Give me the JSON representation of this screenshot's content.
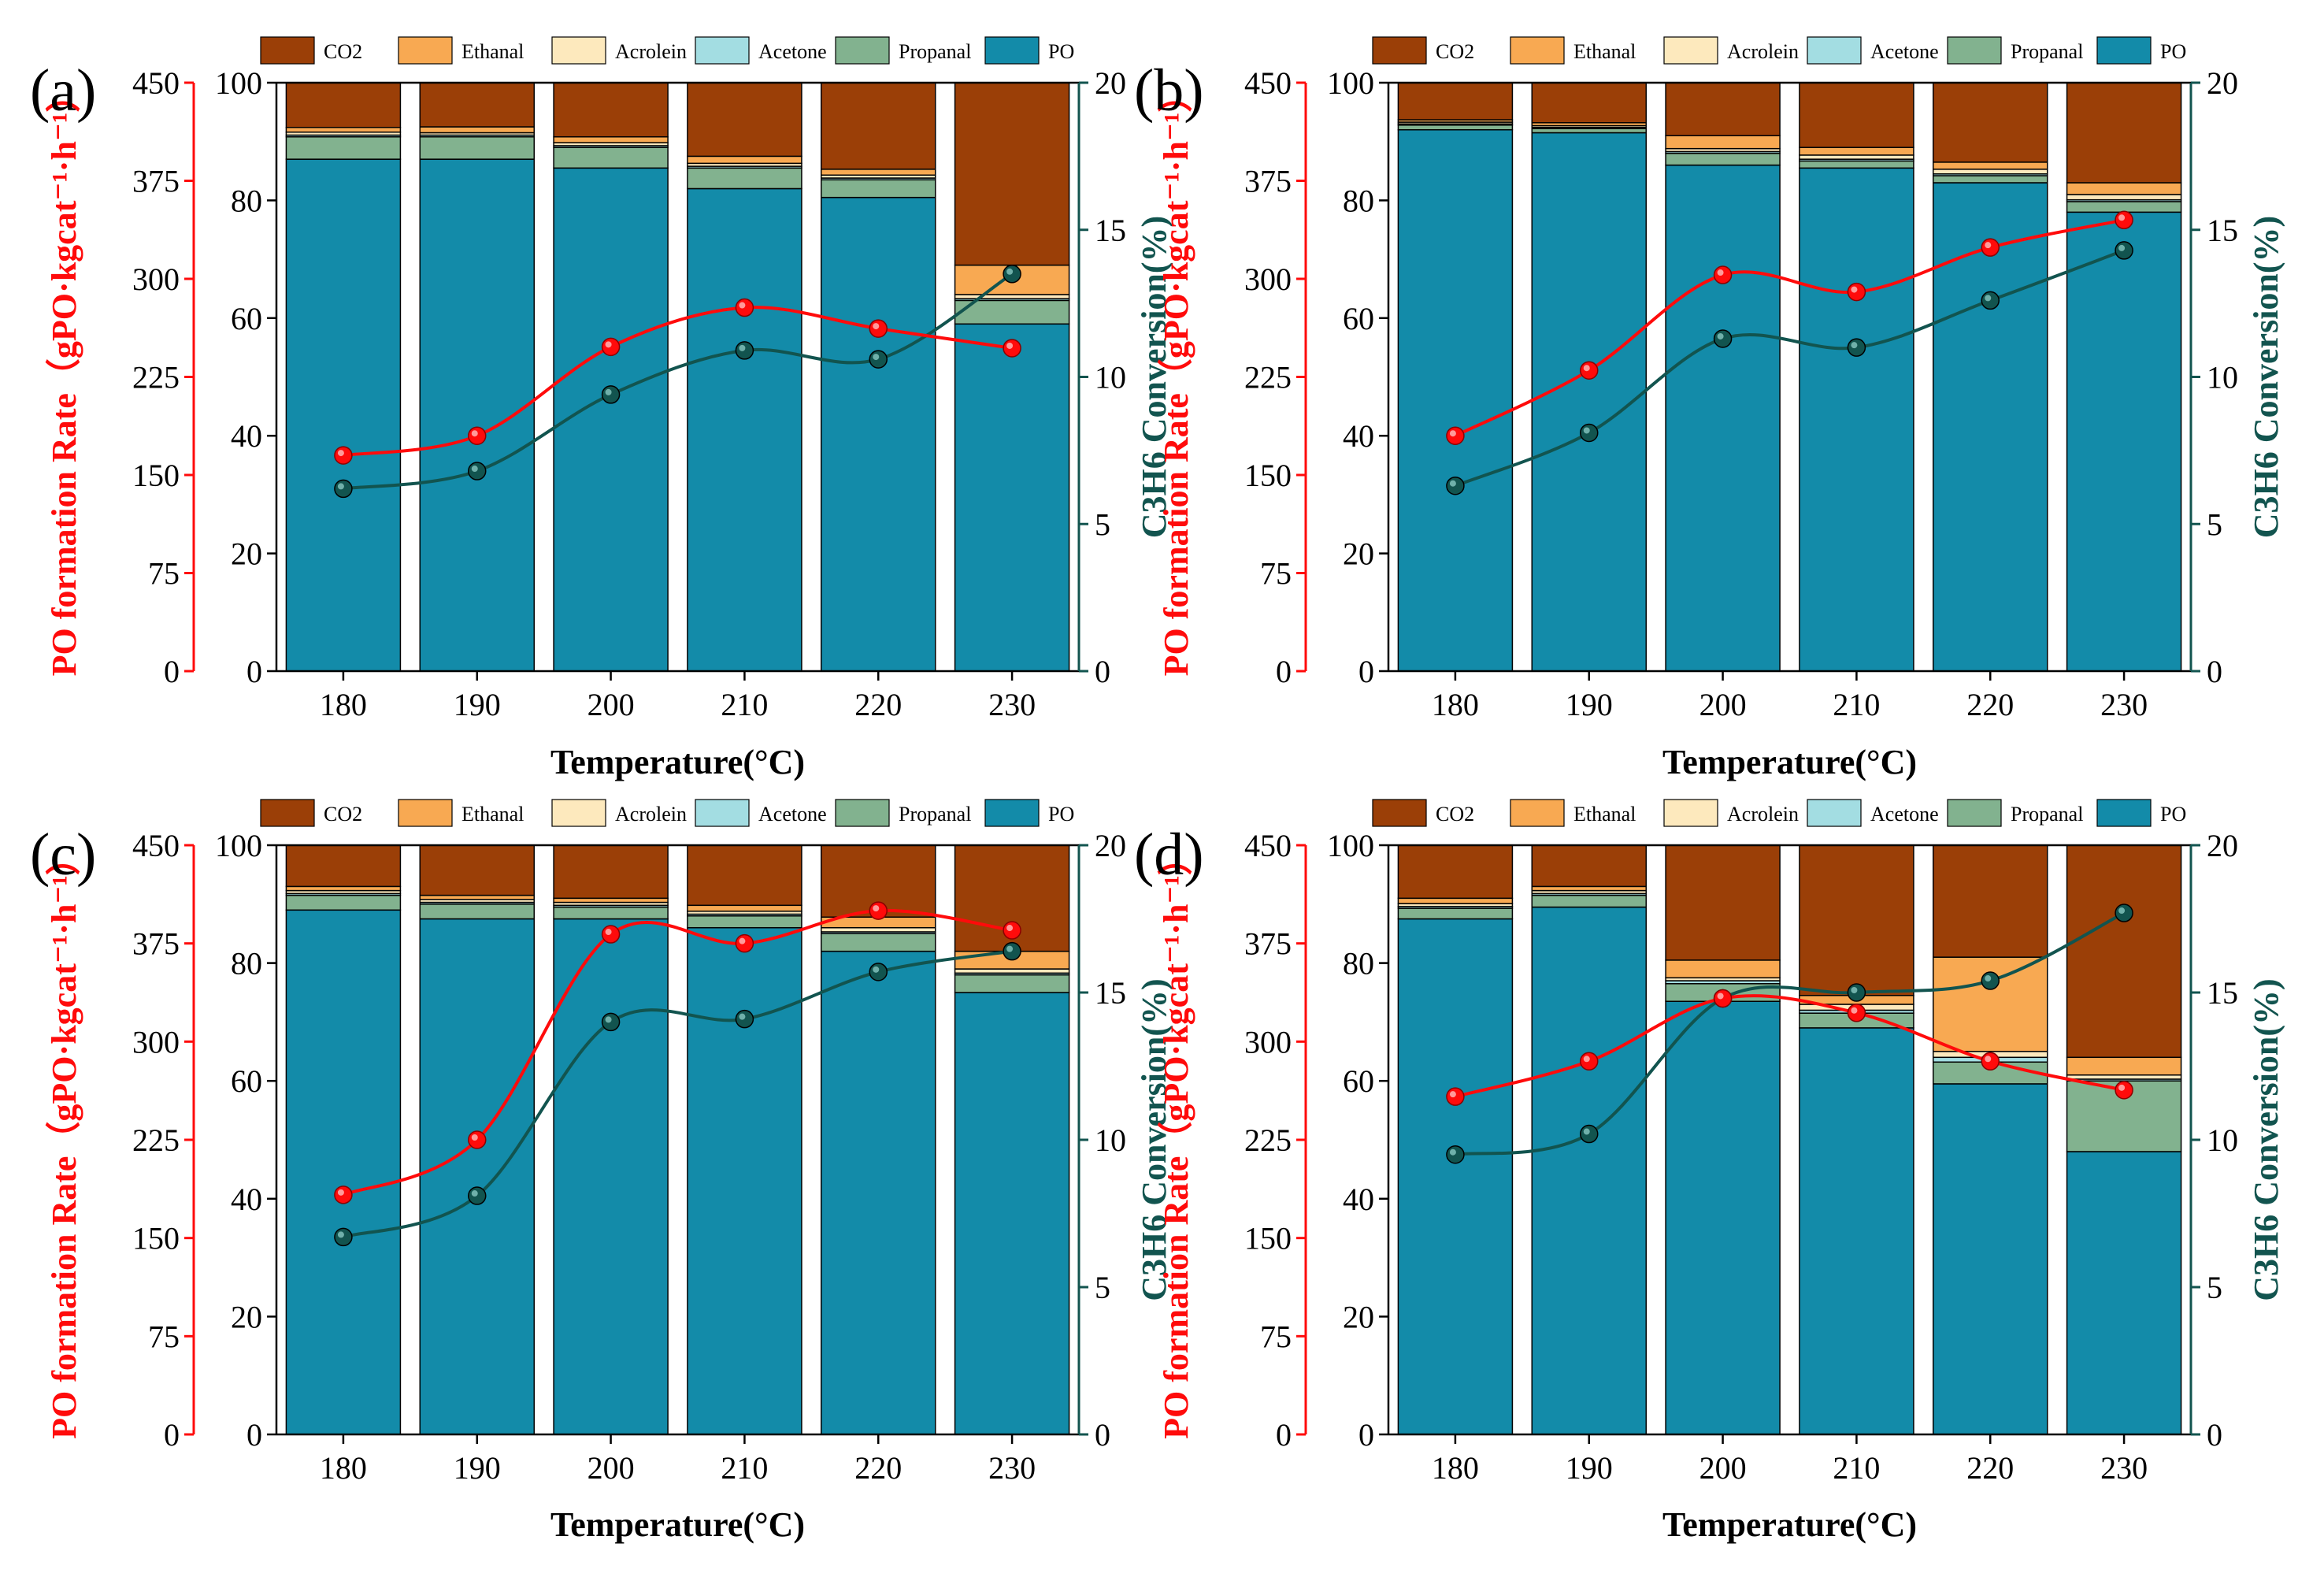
{
  "figure": {
    "series_names": [
      "CO2",
      "Ethanal",
      "Acrolein",
      "Acetone",
      "Propanal",
      "PO"
    ],
    "colors": {
      "CO2": "#9b3f07",
      "Ethanal": "#f8a952",
      "Acrolein": "#fde9bd",
      "Acetone": "#a3dde2",
      "Propanal": "#82b28f",
      "PO": "#138ba9",
      "rate": "#ff0b0b",
      "conversion": "#12544f"
    }
  },
  "labels": {
    "xlabel": "Temperature(°C)",
    "ylabel_left_prefix": "PO formation Rate",
    "ylabel_left_unit": "（gPO·kgcat⁻¹·h⁻¹）",
    "ylabel_right": "C3H6 Conversion(%)",
    "legend": [
      "CO2",
      "Ethanal",
      "Acrolein",
      "Acetone",
      "Propanal",
      "PO"
    ]
  },
  "chart_data": [
    {
      "panel": "(a)",
      "type": "bar",
      "categories": [
        "180",
        "190",
        "200",
        "210",
        "220",
        "230"
      ],
      "series": [
        {
          "name": "PO",
          "values": [
            87.0,
            87.0,
            85.5,
            82.0,
            80.5,
            59.0
          ]
        },
        {
          "name": "Propanal",
          "values": [
            3.8,
            3.8,
            3.5,
            3.5,
            3.0,
            4.0
          ]
        },
        {
          "name": "Acetone",
          "values": [
            0.3,
            0.3,
            0.3,
            0.3,
            0.3,
            0.3
          ]
        },
        {
          "name": "Acrolein",
          "values": [
            0.5,
            0.4,
            0.5,
            0.5,
            0.5,
            0.7
          ]
        },
        {
          "name": "Ethanal",
          "values": [
            0.8,
            1.0,
            1.0,
            1.2,
            1.0,
            5.0
          ]
        },
        {
          "name": "CO2",
          "values": [
            7.6,
            7.5,
            9.2,
            12.5,
            14.7,
            31.0
          ]
        }
      ],
      "rate": [
        165,
        180,
        248,
        278,
        262,
        247
      ],
      "conversion": [
        6.2,
        6.8,
        9.4,
        10.9,
        10.6,
        13.5
      ],
      "ylim": [
        0,
        100
      ],
      "rate_ylim": [
        0,
        450
      ],
      "conversion_ylim": [
        0,
        20
      ],
      "y_ticks": [
        "0",
        "20",
        "40",
        "60",
        "80",
        "100"
      ],
      "rate_ticks": [
        "0",
        "75",
        "150",
        "225",
        "300",
        "375",
        "450"
      ],
      "conversion_ticks": [
        "0",
        "5",
        "10",
        "15",
        "20"
      ]
    },
    {
      "panel": "(b)",
      "type": "bar",
      "categories": [
        "180",
        "190",
        "200",
        "210",
        "220",
        "230"
      ],
      "series": [
        {
          "name": "PO",
          "values": [
            92.0,
            91.5,
            86.0,
            85.5,
            83.0,
            78.0
          ]
        },
        {
          "name": "Propanal",
          "values": [
            0.8,
            0.7,
            2.0,
            1.2,
            1.2,
            1.8
          ]
        },
        {
          "name": "Acetone",
          "values": [
            0.2,
            0.2,
            0.3,
            0.3,
            0.3,
            0.3
          ]
        },
        {
          "name": "Acrolein",
          "values": [
            0.3,
            0.3,
            0.5,
            0.7,
            0.8,
            0.9
          ]
        },
        {
          "name": "Ethanal",
          "values": [
            0.4,
            0.5,
            2.2,
            1.3,
            1.2,
            2.0
          ]
        },
        {
          "name": "CO2",
          "values": [
            6.3,
            6.8,
            9.0,
            11.0,
            13.5,
            17.0
          ]
        }
      ],
      "rate": [
        180,
        230,
        303,
        290,
        324,
        345
      ],
      "conversion": [
        6.3,
        8.1,
        11.3,
        11.0,
        12.6,
        14.3
      ],
      "ylim": [
        0,
        100
      ],
      "rate_ylim": [
        0,
        450
      ],
      "conversion_ylim": [
        0,
        20
      ],
      "y_ticks": [
        "0",
        "20",
        "40",
        "60",
        "80",
        "100"
      ],
      "rate_ticks": [
        "0",
        "75",
        "150",
        "225",
        "300",
        "375",
        "450"
      ],
      "conversion_ticks": [
        "0",
        "5",
        "10",
        "15",
        "20"
      ]
    },
    {
      "panel": "(c)",
      "type": "bar",
      "categories": [
        "180",
        "190",
        "200",
        "210",
        "220",
        "230"
      ],
      "series": [
        {
          "name": "PO",
          "values": [
            89.0,
            87.5,
            87.5,
            86.0,
            82.0,
            75.0
          ]
        },
        {
          "name": "Propanal",
          "values": [
            2.5,
            2.5,
            2.0,
            2.0,
            3.0,
            3.0
          ]
        },
        {
          "name": "Acetone",
          "values": [
            0.3,
            0.3,
            0.3,
            0.3,
            0.3,
            0.3
          ]
        },
        {
          "name": "Acrolein",
          "values": [
            0.5,
            0.5,
            0.5,
            0.5,
            0.7,
            0.7
          ]
        },
        {
          "name": "Ethanal",
          "values": [
            0.7,
            0.7,
            0.7,
            1.0,
            1.8,
            3.0
          ]
        },
        {
          "name": "CO2",
          "values": [
            7.0,
            8.5,
            9.0,
            10.2,
            12.2,
            18.0
          ]
        }
      ],
      "rate": [
        183,
        225,
        382,
        375,
        400,
        385
      ],
      "conversion": [
        6.7,
        8.1,
        14.0,
        14.1,
        15.7,
        16.4
      ],
      "ylim": [
        0,
        100
      ],
      "rate_ylim": [
        0,
        450
      ],
      "conversion_ylim": [
        0,
        20
      ],
      "y_ticks": [
        "0",
        "20",
        "40",
        "60",
        "80",
        "100"
      ],
      "rate_ticks": [
        "0",
        "75",
        "150",
        "225",
        "300",
        "375",
        "450"
      ],
      "conversion_ticks": [
        "0",
        "5",
        "10",
        "15",
        "20"
      ]
    },
    {
      "panel": "(d)",
      "type": "bar",
      "categories": [
        "180",
        "190",
        "200",
        "210",
        "220",
        "230"
      ],
      "series": [
        {
          "name": "PO",
          "values": [
            87.5,
            89.5,
            73.5,
            69.0,
            59.5,
            48.0
          ]
        },
        {
          "name": "Propanal",
          "values": [
            1.8,
            2.0,
            3.0,
            2.5,
            3.7,
            12.0
          ]
        },
        {
          "name": "Acetone",
          "values": [
            0.3,
            0.3,
            0.5,
            0.5,
            0.8,
            0.3
          ]
        },
        {
          "name": "Acrolein",
          "values": [
            0.5,
            0.5,
            0.5,
            1.0,
            1.0,
            0.7
          ]
        },
        {
          "name": "Ethanal",
          "values": [
            0.9,
            0.7,
            3.0,
            1.5,
            16.0,
            3.0
          ]
        },
        {
          "name": "CO2",
          "values": [
            9.0,
            7.0,
            19.5,
            25.5,
            19.0,
            36.0
          ]
        }
      ],
      "rate": [
        258,
        285,
        333,
        322,
        285,
        263
      ],
      "conversion": [
        9.5,
        10.2,
        14.8,
        15.0,
        15.4,
        17.7
      ],
      "ylim": [
        0,
        100
      ],
      "rate_ylim": [
        0,
        450
      ],
      "conversion_ylim": [
        0,
        20
      ],
      "y_ticks": [
        "0",
        "20",
        "40",
        "60",
        "80",
        "100"
      ],
      "rate_ticks": [
        "0",
        "75",
        "150",
        "225",
        "300",
        "375",
        "450"
      ],
      "conversion_ticks": [
        "0",
        "5",
        "10",
        "15",
        "20"
      ]
    }
  ]
}
